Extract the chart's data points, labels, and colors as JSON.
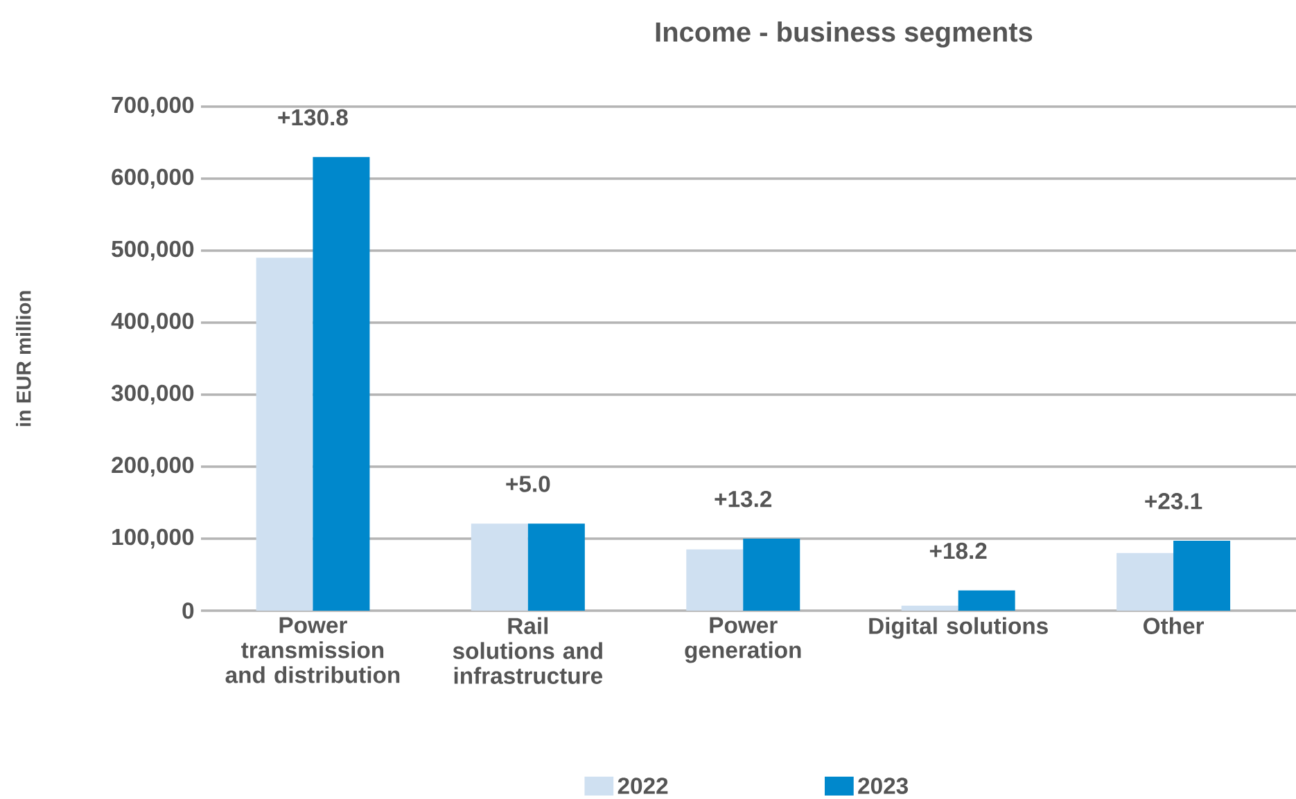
{
  "chart_data": {
    "type": "bar",
    "title": "Income - business segments",
    "ylabel": "in EUR million",
    "categories": [
      "Power transmission and distribution",
      "Rail solutions and infrastructure",
      "Power generation",
      "Digital solutions",
      "Other"
    ],
    "series": [
      {
        "name": "2022",
        "color": "#cfe0f1",
        "values": [
          490000,
          121000,
          85000,
          7000,
          80000
        ]
      },
      {
        "name": "2023",
        "color": "#0088cc",
        "values": [
          630000,
          121000,
          100000,
          28000,
          97000
        ]
      }
    ],
    "ylim": [
      0,
      700000
    ],
    "yticks": [
      {
        "value": 0,
        "label": "0"
      },
      {
        "value": 100000,
        "label": "100,000"
      },
      {
        "value": 200000,
        "label": "200,000"
      },
      {
        "value": 300000,
        "label": "300,000"
      },
      {
        "value": 400000,
        "label": "400,000"
      },
      {
        "value": 500000,
        "label": "500,000"
      },
      {
        "value": 600000,
        "label": "600,000"
      },
      {
        "value": 700000,
        "label": "700,000"
      }
    ],
    "annotations": [
      "+130.8",
      "+5.0",
      "+13.2",
      "+18.2",
      "+23.1"
    ],
    "grid": "y",
    "legend": "bottom"
  }
}
